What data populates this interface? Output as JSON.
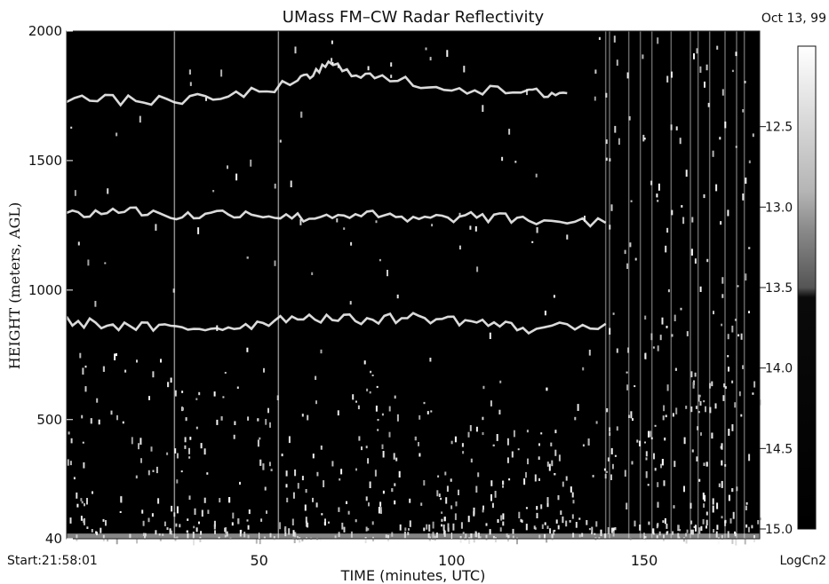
{
  "chart_data": {
    "type": "heatmap",
    "title": "UMass FM–CW Radar Reflectivity",
    "date_label": "Oct 13, 99",
    "start_label": "Start:21:58:01",
    "xlabel": "TIME (minutes, UTC)",
    "ylabel": "HEIGHT (meters, AGL)",
    "colorbar_label": "LogCn2",
    "xlim": [
      0,
      180
    ],
    "ylim": [
      40,
      2000
    ],
    "x_ticks": [
      50,
      100,
      150
    ],
    "y_ticks": [
      40,
      500,
      1000,
      1500,
      2000
    ],
    "colorbar_range": [
      -15.0,
      -12.0
    ],
    "colorbar_ticks": [
      -12.5,
      -13.0,
      -13.5,
      -14.0,
      -14.5,
      -15.0
    ],
    "colorbar_tick_labels": [
      "12.5",
      "13.0",
      "13.5",
      "14.0",
      "14.5",
      "15.0"
    ],
    "colormap": "grayscale",
    "colors": {
      "background": "#000000",
      "echo": "#ffffff"
    },
    "features": [
      {
        "x": [
          0,
          15,
          30,
          45,
          60,
          75,
          90,
          105,
          120,
          140
        ],
        "y": [
          1290,
          1310,
          1285,
          1300,
          1280,
          1295,
          1270,
          1285,
          1270,
          1260
        ]
      },
      {
        "x": [
          0,
          15,
          30,
          45,
          60,
          75,
          90,
          105,
          120,
          140
        ],
        "y": [
          880,
          860,
          850,
          860,
          900,
          885,
          895,
          880,
          850,
          870
        ]
      },
      {
        "x": [
          0,
          20,
          40,
          60,
          68,
          80,
          100,
          120,
          130
        ],
        "y": [
          1740,
          1730,
          1740,
          1800,
          1870,
          1820,
          1780,
          1760,
          1760
        ]
      }
    ]
  }
}
